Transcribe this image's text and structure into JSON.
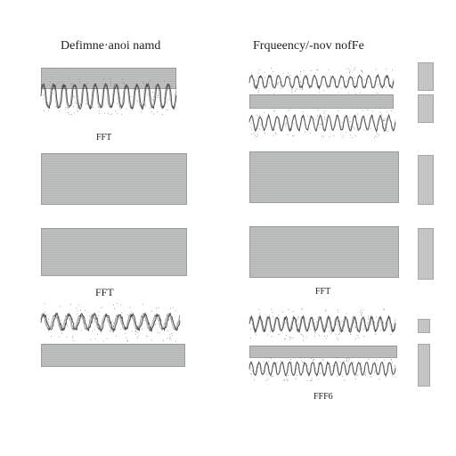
{
  "titles": {
    "left": "Defimne·anoi namd",
    "right": "Frqueency/-nov nofFe"
  },
  "fft_labels": {
    "left_top": "FFT",
    "left_middle": "FFT",
    "right_middle": "FFT",
    "right_bottom": "FFF6"
  },
  "colors": {
    "panel_fill": "#b9bcbb",
    "panel_border": "#9a9d9c",
    "wave_stroke": "#3a3a3a",
    "background": "#ffffff"
  }
}
